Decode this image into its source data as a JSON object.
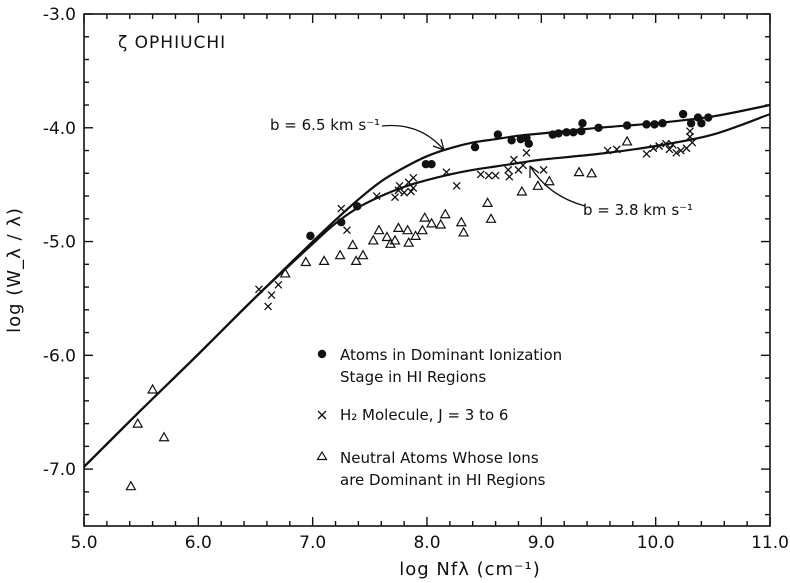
{
  "chart_data": {
    "type": "scatter",
    "title": "ζ OPHIUCHI",
    "xlabel": "log Nfλ (cm⁻¹)",
    "ylabel": "log (W_λ / λ)",
    "xlim": [
      5.0,
      11.0
    ],
    "ylim": [
      -7.5,
      -3.0
    ],
    "xticks": [
      "5.0",
      "6.0",
      "7.0",
      "8.0",
      "9.0",
      "10.0",
      "11.0"
    ],
    "yticks": [
      "-3.0",
      "-4.0",
      "-5.0",
      "-6.0",
      "-7.0"
    ],
    "grid": false,
    "legend_position": "lower-right",
    "curves": [
      {
        "label": "b = 6.5 km s⁻¹",
        "x": [
          5.0,
          5.5,
          6.0,
          6.5,
          7.0,
          7.2,
          7.4,
          7.6,
          7.8,
          8.0,
          8.2,
          8.4,
          8.6,
          8.8,
          9.0,
          9.5,
          10.0,
          10.5,
          11.0
        ],
        "y": [
          -6.98,
          -6.48,
          -5.99,
          -5.49,
          -5.0,
          -4.81,
          -4.63,
          -4.47,
          -4.35,
          -4.25,
          -4.18,
          -4.13,
          -4.1,
          -4.07,
          -4.05,
          -4.0,
          -3.96,
          -3.9,
          -3.8
        ]
      },
      {
        "label": "b = 3.8 km s⁻¹",
        "x": [
          5.0,
          5.5,
          6.0,
          6.5,
          7.0,
          7.2,
          7.4,
          7.6,
          7.8,
          8.0,
          8.2,
          8.4,
          8.6,
          8.8,
          9.0,
          9.5,
          10.0,
          10.5,
          11.0
        ],
        "y": [
          -6.98,
          -6.48,
          -5.99,
          -5.49,
          -5.02,
          -4.84,
          -4.7,
          -4.6,
          -4.52,
          -4.46,
          -4.41,
          -4.37,
          -4.34,
          -4.31,
          -4.28,
          -4.23,
          -4.16,
          -4.06,
          -3.88
        ]
      }
    ],
    "series": [
      {
        "name": "Atoms in Dominant Ionization Stage in HI Regions",
        "marker": "dot",
        "points": [
          [
            6.98,
            -4.95
          ],
          [
            7.25,
            -4.83
          ],
          [
            7.39,
            -4.69
          ],
          [
            7.99,
            -4.32
          ],
          [
            8.04,
            -4.32
          ],
          [
            8.42,
            -4.17
          ],
          [
            8.62,
            -4.06
          ],
          [
            8.74,
            -4.11
          ],
          [
            8.82,
            -4.1
          ],
          [
            8.87,
            -4.09
          ],
          [
            8.89,
            -4.14
          ],
          [
            9.1,
            -4.06
          ],
          [
            9.15,
            -4.05
          ],
          [
            9.22,
            -4.04
          ],
          [
            9.28,
            -4.04
          ],
          [
            9.35,
            -4.03
          ],
          [
            9.36,
            -3.96
          ],
          [
            9.5,
            -4.0
          ],
          [
            9.75,
            -3.98
          ],
          [
            9.92,
            -3.97
          ],
          [
            9.99,
            -3.97
          ],
          [
            10.06,
            -3.96
          ],
          [
            10.24,
            -3.88
          ],
          [
            10.31,
            -3.96
          ],
          [
            10.37,
            -3.91
          ],
          [
            10.4,
            -3.96
          ],
          [
            10.46,
            -3.91
          ]
        ]
      },
      {
        "name": "H₂ Molecule, J = 3 to 6",
        "marker": "x",
        "points": [
          [
            6.53,
            -5.42
          ],
          [
            6.61,
            -5.57
          ],
          [
            6.64,
            -5.47
          ],
          [
            6.7,
            -5.38
          ],
          [
            7.25,
            -4.71
          ],
          [
            7.3,
            -4.9
          ],
          [
            7.56,
            -4.6
          ],
          [
            7.72,
            -4.61
          ],
          [
            7.75,
            -4.55
          ],
          [
            7.76,
            -4.51
          ],
          [
            7.8,
            -4.57
          ],
          [
            7.84,
            -4.48
          ],
          [
            7.86,
            -4.56
          ],
          [
            7.88,
            -4.53
          ],
          [
            7.88,
            -4.44
          ],
          [
            8.17,
            -4.39
          ],
          [
            8.26,
            -4.51
          ],
          [
            8.47,
            -4.41
          ],
          [
            8.54,
            -4.42
          ],
          [
            8.6,
            -4.42
          ],
          [
            8.71,
            -4.37
          ],
          [
            8.72,
            -4.43
          ],
          [
            8.76,
            -4.28
          ],
          [
            8.8,
            -4.37
          ],
          [
            8.84,
            -4.33
          ],
          [
            8.87,
            -4.22
          ],
          [
            9.02,
            -4.37
          ],
          [
            9.58,
            -4.2
          ],
          [
            9.66,
            -4.19
          ],
          [
            9.92,
            -4.23
          ],
          [
            9.98,
            -4.18
          ],
          [
            10.03,
            -4.16
          ],
          [
            10.09,
            -4.14
          ],
          [
            10.12,
            -4.19
          ],
          [
            10.15,
            -4.15
          ],
          [
            10.18,
            -4.22
          ],
          [
            10.22,
            -4.2
          ],
          [
            10.27,
            -4.18
          ],
          [
            10.3,
            -4.08
          ],
          [
            10.3,
            -4.03
          ],
          [
            10.32,
            -4.13
          ]
        ]
      },
      {
        "name": "Neutral Atoms Whose Ions are Dominant in HI Regions",
        "marker": "triangle",
        "points": [
          [
            5.41,
            -7.15
          ],
          [
            5.47,
            -6.6
          ],
          [
            5.6,
            -6.3
          ],
          [
            5.7,
            -6.72
          ],
          [
            6.76,
            -5.28
          ],
          [
            6.94,
            -5.18
          ],
          [
            7.1,
            -5.17
          ],
          [
            7.24,
            -5.12
          ],
          [
            7.35,
            -5.03
          ],
          [
            7.38,
            -5.17
          ],
          [
            7.44,
            -5.12
          ],
          [
            7.53,
            -4.99
          ],
          [
            7.58,
            -4.9
          ],
          [
            7.65,
            -4.96
          ],
          [
            7.68,
            -5.02
          ],
          [
            7.72,
            -4.99
          ],
          [
            7.75,
            -4.88
          ],
          [
            7.83,
            -4.9
          ],
          [
            7.84,
            -5.01
          ],
          [
            7.9,
            -4.95
          ],
          [
            7.96,
            -4.9
          ],
          [
            7.98,
            -4.79
          ],
          [
            8.04,
            -4.84
          ],
          [
            8.12,
            -4.85
          ],
          [
            8.16,
            -4.76
          ],
          [
            8.3,
            -4.83
          ],
          [
            8.32,
            -4.92
          ],
          [
            8.53,
            -4.66
          ],
          [
            8.56,
            -4.8
          ],
          [
            8.83,
            -4.56
          ],
          [
            8.97,
            -4.51
          ],
          [
            9.07,
            -4.47
          ],
          [
            9.33,
            -4.39
          ],
          [
            9.44,
            -4.4
          ],
          [
            9.75,
            -4.12
          ]
        ]
      }
    ],
    "annotations": [
      {
        "text": "b = 6.5 km  s⁻¹",
        "points_to": [
          8.0,
          -4.26
        ]
      },
      {
        "text": "b = 3.8 km  s⁻¹",
        "points_to": [
          9.3,
          -4.26
        ]
      }
    ]
  },
  "legend": {
    "dot_line1": "Atoms in Dominant Ionization",
    "dot_line2": "Stage in HI Regions",
    "x_line1": "H₂ Molecule, J = 3 to 6",
    "tri_line1": "Neutral Atoms Whose Ions",
    "tri_line2": "are Dominant in HI Regions"
  }
}
